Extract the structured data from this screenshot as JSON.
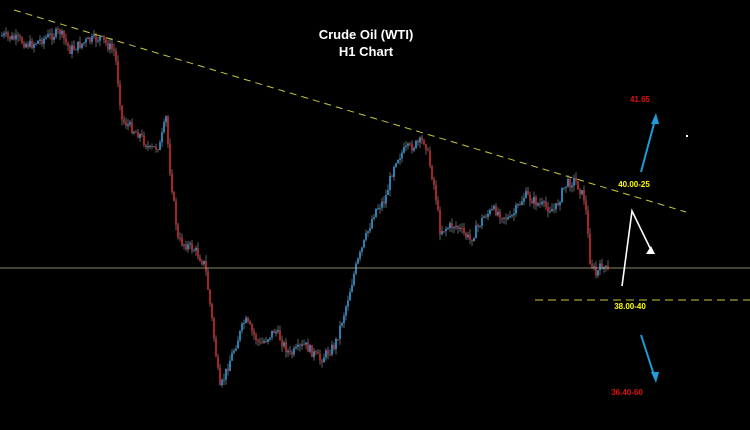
{
  "chart_data": {
    "type": "candlestick",
    "title": "Crude Oil (WTI)",
    "subtitle": "H1 Chart",
    "grid": false,
    "legend": "none",
    "colors": {
      "background": "#000000",
      "bull_candle": "#2fa0e6",
      "bear_candle": "#d42a2a",
      "wick": "#9aa0a8",
      "trendline": "#c8c83a",
      "support_line": "#c8c83a",
      "current_price_line": "#b7b88a",
      "up_arrow": "#1e9bd8",
      "down_arrow": "#1e9bd8",
      "forecast_path": "#ffffff",
      "level_label_red": "#e01010",
      "level_label_yellow": "#ffff00"
    },
    "annotations": [
      {
        "text": "41.65",
        "kind": "target-up",
        "color": "#e01010"
      },
      {
        "text": "40.00-25",
        "kind": "resistance",
        "color": "#ffff00"
      },
      {
        "text": "38.00-40",
        "kind": "support",
        "color": "#ffff00"
      },
      {
        "text": "36.40-60",
        "kind": "target-down",
        "color": "#e01010"
      }
    ]
  }
}
